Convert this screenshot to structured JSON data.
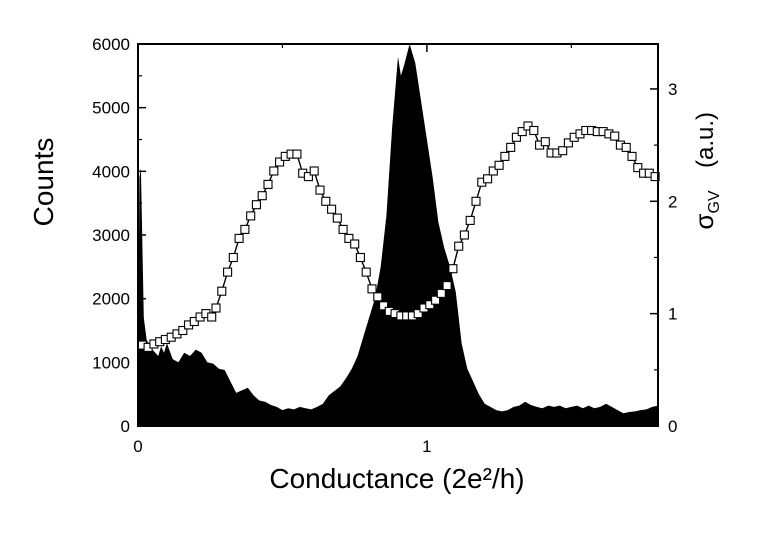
{
  "chart_data": {
    "type": "area",
    "xlabel": "Conductance  (2e²/h)",
    "ylabel": "Counts",
    "y2label": "σ",
    "y2label_sub": "GV",
    "y2label_unit": "(a.u.)",
    "xlim": [
      0,
      1.8
    ],
    "ylim": [
      0,
      6000
    ],
    "y2lim": [
      0,
      3.4
    ],
    "x_ticks": [
      0,
      1
    ],
    "y_ticks": [
      0,
      1000,
      2000,
      3000,
      4000,
      5000,
      6000
    ],
    "y2_ticks": [
      0,
      1,
      2,
      3
    ],
    "series": [
      {
        "kind": "histogram-area",
        "color": "#000000",
        "points": [
          [
            0.0,
            0
          ],
          [
            0.005,
            3900
          ],
          [
            0.01,
            4050
          ],
          [
            0.02,
            1700
          ],
          [
            0.03,
            1350
          ],
          [
            0.05,
            1200
          ],
          [
            0.07,
            1100
          ],
          [
            0.08,
            1250
          ],
          [
            0.09,
            1150
          ],
          [
            0.1,
            1300
          ],
          [
            0.12,
            1050
          ],
          [
            0.14,
            1000
          ],
          [
            0.16,
            1150
          ],
          [
            0.18,
            1100
          ],
          [
            0.2,
            1200
          ],
          [
            0.22,
            1150
          ],
          [
            0.24,
            1000
          ],
          [
            0.26,
            980
          ],
          [
            0.28,
            900
          ],
          [
            0.3,
            880
          ],
          [
            0.32,
            700
          ],
          [
            0.34,
            520
          ],
          [
            0.36,
            560
          ],
          [
            0.38,
            600
          ],
          [
            0.4,
            480
          ],
          [
            0.42,
            400
          ],
          [
            0.44,
            380
          ],
          [
            0.46,
            330
          ],
          [
            0.48,
            300
          ],
          [
            0.5,
            250
          ],
          [
            0.52,
            280
          ],
          [
            0.54,
            260
          ],
          [
            0.56,
            300
          ],
          [
            0.58,
            280
          ],
          [
            0.6,
            260
          ],
          [
            0.62,
            300
          ],
          [
            0.64,
            350
          ],
          [
            0.66,
            480
          ],
          [
            0.68,
            550
          ],
          [
            0.7,
            620
          ],
          [
            0.72,
            750
          ],
          [
            0.74,
            900
          ],
          [
            0.76,
            1100
          ],
          [
            0.78,
            1400
          ],
          [
            0.8,
            1700
          ],
          [
            0.82,
            2000
          ],
          [
            0.84,
            2500
          ],
          [
            0.86,
            3300
          ],
          [
            0.88,
            4700
          ],
          [
            0.9,
            5800
          ],
          [
            0.91,
            5500
          ],
          [
            0.92,
            5650
          ],
          [
            0.94,
            6000
          ],
          [
            0.96,
            5700
          ],
          [
            0.98,
            5100
          ],
          [
            1.0,
            4500
          ],
          [
            1.02,
            3900
          ],
          [
            1.04,
            3200
          ],
          [
            1.06,
            2800
          ],
          [
            1.08,
            2500
          ],
          [
            1.1,
            2100
          ],
          [
            1.12,
            1300
          ],
          [
            1.14,
            900
          ],
          [
            1.16,
            700
          ],
          [
            1.18,
            500
          ],
          [
            1.2,
            350
          ],
          [
            1.22,
            300
          ],
          [
            1.24,
            250
          ],
          [
            1.26,
            230
          ],
          [
            1.28,
            250
          ],
          [
            1.3,
            300
          ],
          [
            1.32,
            320
          ],
          [
            1.34,
            380
          ],
          [
            1.36,
            330
          ],
          [
            1.38,
            300
          ],
          [
            1.4,
            280
          ],
          [
            1.42,
            320
          ],
          [
            1.44,
            300
          ],
          [
            1.46,
            320
          ],
          [
            1.48,
            280
          ],
          [
            1.5,
            300
          ],
          [
            1.52,
            320
          ],
          [
            1.54,
            280
          ],
          [
            1.56,
            320
          ],
          [
            1.58,
            280
          ],
          [
            1.6,
            300
          ],
          [
            1.62,
            350
          ],
          [
            1.64,
            300
          ],
          [
            1.66,
            250
          ],
          [
            1.68,
            200
          ],
          [
            1.7,
            220
          ],
          [
            1.72,
            230
          ],
          [
            1.74,
            250
          ],
          [
            1.76,
            260
          ],
          [
            1.78,
            300
          ],
          [
            1.8,
            320
          ]
        ]
      },
      {
        "kind": "line-open-square-markers",
        "axis": "right",
        "color": "#000000",
        "points": [
          [
            0.015,
            0.72
          ],
          [
            0.035,
            0.7
          ],
          [
            0.055,
            0.73
          ],
          [
            0.075,
            0.75
          ],
          [
            0.095,
            0.77
          ],
          [
            0.115,
            0.79
          ],
          [
            0.135,
            0.82
          ],
          [
            0.155,
            0.85
          ],
          [
            0.175,
            0.9
          ],
          [
            0.195,
            0.93
          ],
          [
            0.215,
            0.97
          ],
          [
            0.235,
            1.0
          ],
          [
            0.255,
            0.97
          ],
          [
            0.27,
            1.05
          ],
          [
            0.29,
            1.2
          ],
          [
            0.31,
            1.37
          ],
          [
            0.33,
            1.5
          ],
          [
            0.35,
            1.67
          ],
          [
            0.37,
            1.75
          ],
          [
            0.39,
            1.87
          ],
          [
            0.41,
            1.97
          ],
          [
            0.43,
            2.05
          ],
          [
            0.45,
            2.15
          ],
          [
            0.47,
            2.27
          ],
          [
            0.49,
            2.35
          ],
          [
            0.51,
            2.4
          ],
          [
            0.53,
            2.42
          ],
          [
            0.55,
            2.42
          ],
          [
            0.57,
            2.25
          ],
          [
            0.59,
            2.22
          ],
          [
            0.61,
            2.27
          ],
          [
            0.63,
            2.1
          ],
          [
            0.65,
            2.0
          ],
          [
            0.67,
            1.93
          ],
          [
            0.69,
            1.85
          ],
          [
            0.71,
            1.75
          ],
          [
            0.73,
            1.67
          ],
          [
            0.75,
            1.62
          ],
          [
            0.77,
            1.5
          ],
          [
            0.79,
            1.37
          ],
          [
            0.81,
            1.22
          ],
          [
            0.83,
            1.15
          ],
          [
            0.85,
            1.07
          ],
          [
            0.87,
            1.02
          ],
          [
            0.89,
            1.0
          ],
          [
            0.91,
            0.98
          ],
          [
            0.93,
            0.98
          ],
          [
            0.95,
            0.98
          ],
          [
            0.97,
            1.0
          ],
          [
            0.99,
            1.05
          ],
          [
            1.01,
            1.08
          ],
          [
            1.03,
            1.12
          ],
          [
            1.05,
            1.18
          ],
          [
            1.07,
            1.25
          ],
          [
            1.09,
            1.4
          ],
          [
            1.11,
            1.6
          ],
          [
            1.13,
            1.7
          ],
          [
            1.15,
            1.83
          ],
          [
            1.17,
            2.0
          ],
          [
            1.19,
            2.17
          ],
          [
            1.21,
            2.2
          ],
          [
            1.23,
            2.27
          ],
          [
            1.25,
            2.32
          ],
          [
            1.27,
            2.4
          ],
          [
            1.29,
            2.48
          ],
          [
            1.31,
            2.57
          ],
          [
            1.33,
            2.62
          ],
          [
            1.35,
            2.67
          ],
          [
            1.37,
            2.63
          ],
          [
            1.39,
            2.5
          ],
          [
            1.41,
            2.53
          ],
          [
            1.43,
            2.43
          ],
          [
            1.45,
            2.43
          ],
          [
            1.47,
            2.45
          ],
          [
            1.49,
            2.52
          ],
          [
            1.51,
            2.57
          ],
          [
            1.53,
            2.6
          ],
          [
            1.55,
            2.63
          ],
          [
            1.57,
            2.63
          ],
          [
            1.59,
            2.62
          ],
          [
            1.61,
            2.62
          ],
          [
            1.63,
            2.6
          ],
          [
            1.65,
            2.58
          ],
          [
            1.67,
            2.5
          ],
          [
            1.69,
            2.48
          ],
          [
            1.71,
            2.4
          ],
          [
            1.73,
            2.3
          ],
          [
            1.75,
            2.25
          ],
          [
            1.77,
            2.25
          ],
          [
            1.79,
            2.22
          ]
        ]
      }
    ],
    "grid": false,
    "legend": "none"
  }
}
